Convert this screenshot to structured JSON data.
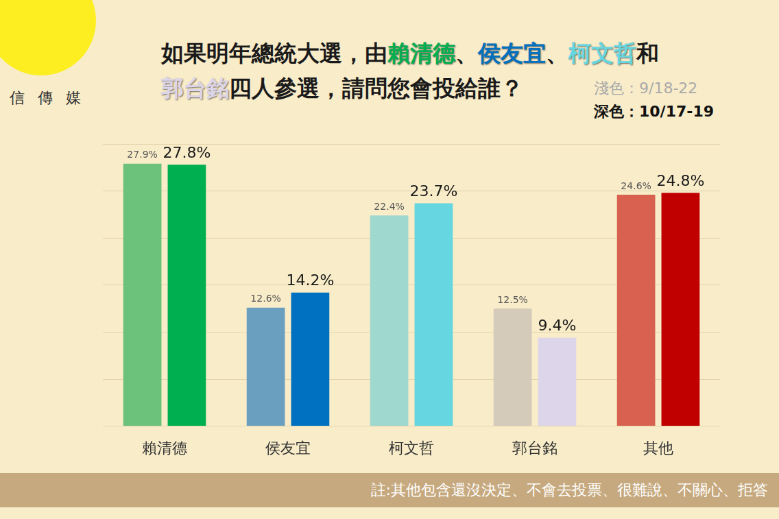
{
  "chart_data": {
    "type": "bar",
    "title": "如果明年總統大選，由賴清德、侯友宜、柯文哲和郭台銘四人參選，請問您會投給誰？",
    "annotations": {
      "logo": "信 傳 媒",
      "note": "註:其他包含還沒決定、不會去投票、很難說、不關心、拒答"
    },
    "categories": [
      "賴清德",
      "侯友宜",
      "柯文哲",
      "郭台銘",
      "其他"
    ],
    "series": [
      {
        "name": "淺色：9/18-22",
        "colors": [
          "#6cc27a",
          "#6a9fbf",
          "#9fd8cf",
          "#d4cbbb",
          "#d9614f"
        ],
        "values": [
          27.9,
          12.6,
          22.4,
          12.5,
          24.6
        ],
        "value_labels": [
          "27.9%",
          "12.6%",
          "22.4%",
          "12.5%",
          "24.6%"
        ]
      },
      {
        "name": "深色：10/17-19",
        "colors": [
          "#00b050",
          "#0070c0",
          "#66d6e0",
          "#ddd6ea",
          "#c00000"
        ],
        "values": [
          27.8,
          14.2,
          23.7,
          9.4,
          24.8
        ],
        "value_labels": [
          "27.8%",
          "14.2%",
          "23.7%",
          "9.4%",
          "24.8%"
        ]
      }
    ],
    "ylim": [
      0,
      30
    ],
    "yticks": [
      0,
      5,
      10,
      15,
      20,
      25,
      30
    ],
    "grid": true,
    "tick_labels": "x",
    "data_labels": true
  }
}
